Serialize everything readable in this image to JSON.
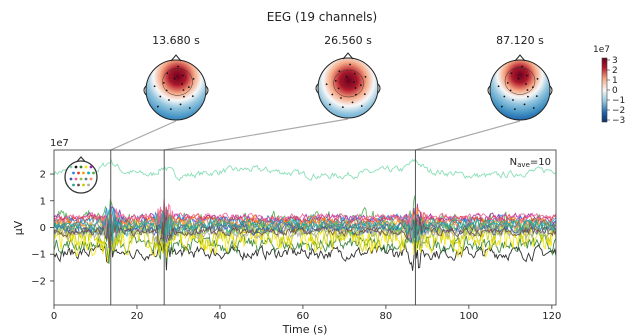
{
  "figure": {
    "title": "EEG (19 channels)",
    "nave_base": "N",
    "nave_sub": "ave",
    "nave_value": "=10",
    "colorbar_exponent": "1e7",
    "colorbar_ticks": [
      "3",
      "2",
      "1",
      "0",
      "−1",
      "−2",
      "−3"
    ],
    "topomap_cmap": [
      "#08306b",
      "#2166ac",
      "#4393c3",
      "#92c5de",
      "#f7f7f7",
      "#f4a582",
      "#d6604d",
      "#b2182b",
      "#67001f"
    ]
  },
  "topomaps": [
    {
      "time": 13.68,
      "label": "13.680 s",
      "hot": {
        "x": 0.05,
        "y": -0.45,
        "r": 0.35
      }
    },
    {
      "time": 26.56,
      "label": "26.560 s",
      "hot": {
        "x": 0.02,
        "y": -0.25,
        "r": 0.4
      }
    },
    {
      "time": 87.12,
      "label": "87.120 s",
      "hot": {
        "x": 0.0,
        "y": -0.5,
        "r": 0.3
      }
    }
  ],
  "chart_data": {
    "type": "line",
    "title": "EEG (19 channels)",
    "xlabel": "Time (s)",
    "ylabel": "µV",
    "y_exponent": "1e7",
    "xlim": [
      0,
      121
    ],
    "ylim": [
      -2.9,
      2.9
    ],
    "xticks": [
      0,
      20,
      40,
      60,
      80,
      100,
      120
    ],
    "yticks": [
      2,
      1,
      0,
      -1,
      -2
    ],
    "marker_times": [
      13.68,
      26.56,
      87.12
    ],
    "series_colors": [
      "#7fdcb0",
      "#1a1a1a",
      "#2e7d32",
      "#f2e600",
      "#cccc00",
      "#4caf50",
      "#9c27b0",
      "#1e88e5",
      "#e53935",
      "#ff9800",
      "#00acc1",
      "#ff8a65",
      "#8bc34a",
      "#3f51b5",
      "#607d8b",
      "#aaaaaa",
      "#f06292",
      "#6d4c41",
      "#26a69a"
    ],
    "series_offsets": [
      2.05,
      -0.95,
      -0.65,
      -0.45,
      -0.3,
      0.2,
      0.35,
      0.25,
      0.3,
      0.1,
      0.0,
      0.15,
      -0.1,
      -0.05,
      0.05,
      -0.2,
      0.4,
      -0.15,
      0.1
    ],
    "series_amplitudes": [
      0.1,
      0.18,
      0.22,
      0.45,
      0.35,
      0.3,
      0.12,
      0.15,
      0.12,
      0.2,
      0.18,
      0.15,
      0.2,
      0.15,
      0.15,
      0.15,
      0.1,
      0.12,
      0.15
    ]
  }
}
